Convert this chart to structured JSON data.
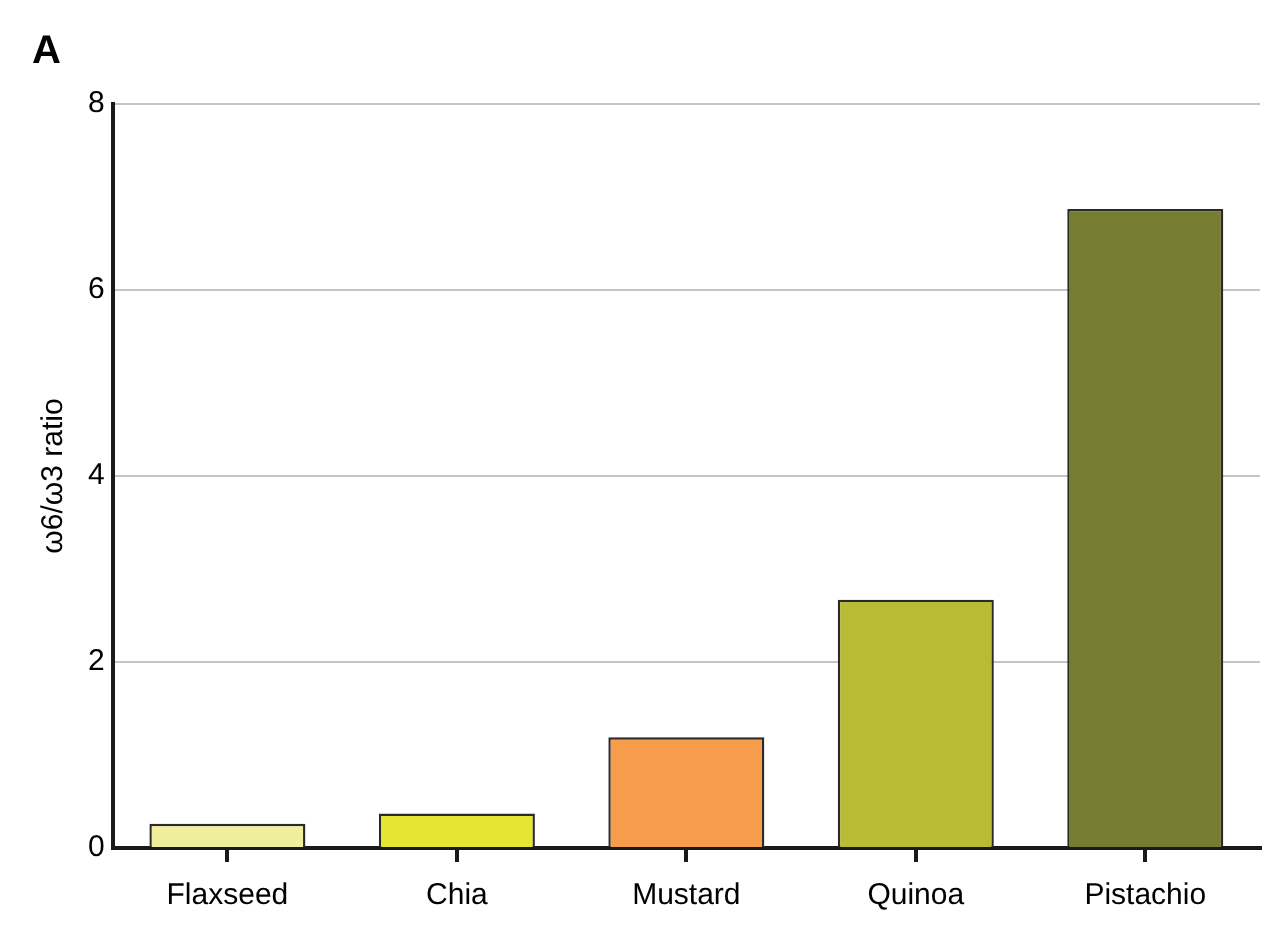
{
  "chart_data": {
    "type": "bar",
    "ylabel": "ω6/ω3 ratio",
    "annotations": [
      "A"
    ],
    "categories": [
      "Flaxseed",
      "Chia",
      "Mustard",
      "Quinoa",
      "Pistachio"
    ],
    "values": [
      0.26,
      0.37,
      1.19,
      2.67,
      6.87
    ],
    "colors": [
      "#eeee9c",
      "#e6e632",
      "#f79c4b",
      "#b7bb35",
      "#767c31"
    ],
    "ylim": [
      0,
      8
    ],
    "yticks": [
      0,
      2,
      4,
      6,
      8
    ],
    "grid": "y",
    "legend": false
  }
}
